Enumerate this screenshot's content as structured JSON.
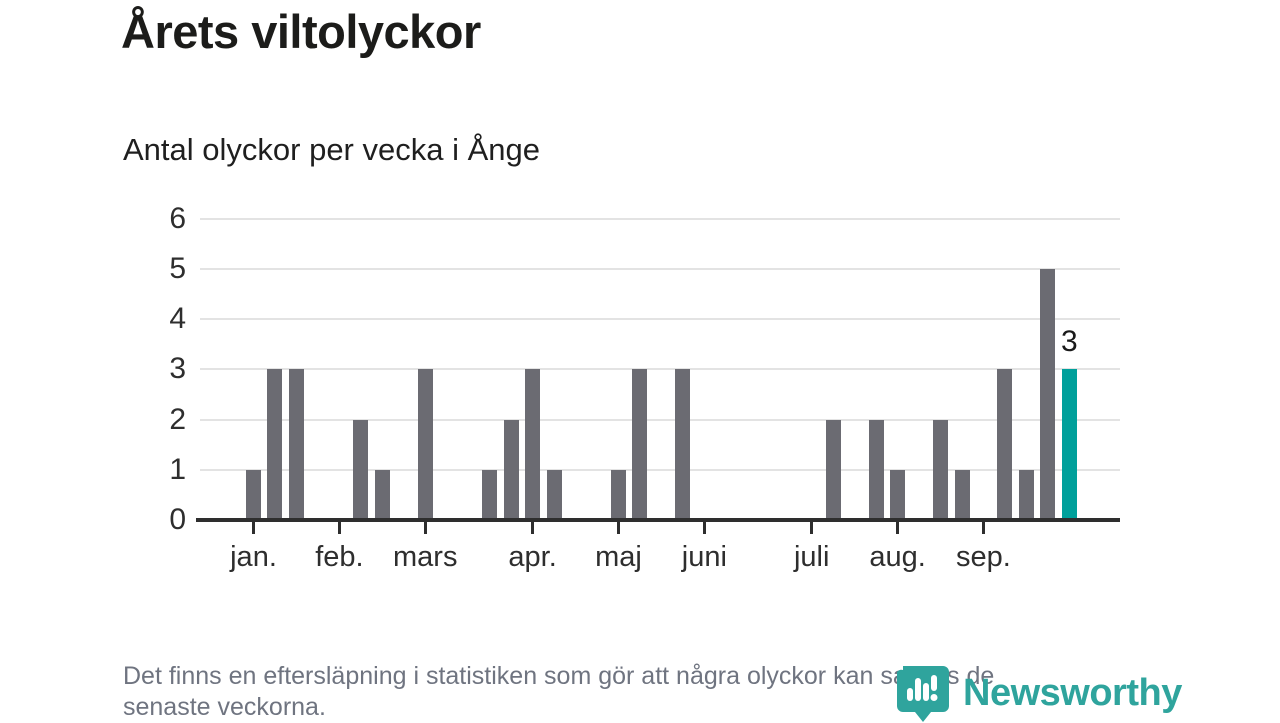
{
  "header": {
    "title": "Årets viltolyckor",
    "subtitle": "Antal olyckor per vecka i Ånge"
  },
  "chart_data": {
    "type": "bar",
    "title": "Årets viltolyckor",
    "subtitle": "Antal olyckor per vecka i Ånge",
    "values": [
      1,
      3,
      3,
      0,
      0,
      2,
      1,
      0,
      3,
      0,
      0,
      1,
      2,
      3,
      1,
      0,
      0,
      1,
      3,
      0,
      3,
      0,
      0,
      0,
      0,
      0,
      0,
      2,
      0,
      2,
      1,
      0,
      2,
      1,
      0,
      3,
      1,
      5,
      3
    ],
    "highlight_index": 38,
    "highlight_label": "3",
    "ylim": [
      0,
      6
    ],
    "y_ticks": [
      0,
      1,
      2,
      3,
      4,
      5,
      6
    ],
    "x_tick_positions": [
      0,
      4,
      8,
      13,
      17,
      21,
      26,
      30,
      34
    ],
    "x_tick_labels": [
      "jan.",
      "feb.",
      "mars",
      "apr.",
      "maj",
      "juni",
      "juli",
      "aug.",
      "sep."
    ],
    "grid": true,
    "legend": "none",
    "colors": {
      "bar": "#6b6b72",
      "highlight": "#00a09b",
      "gridline": "#e3e3e3",
      "axis": "#2e2e2e"
    }
  },
  "footer": {
    "note_lines": [
      "Det finns en eftersläpning i statistiken som gör att några olyckor kan saknas de",
      "senaste veckorna."
    ]
  },
  "logo": {
    "text": "Newsworthy",
    "color": "#2fa49d",
    "icon": "newsworthy-pin-barchart-icon"
  }
}
